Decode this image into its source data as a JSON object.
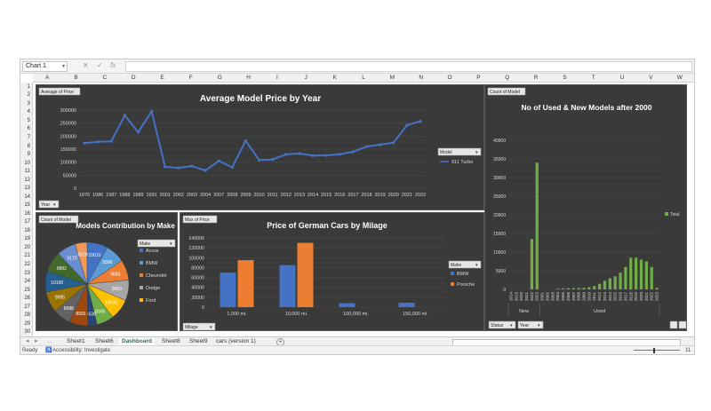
{
  "formula_bar": {
    "name_box": "Chart 1",
    "fx_icon": "fx",
    "cancel_icon": "✕",
    "enter_icon": "✓"
  },
  "columns": [
    "A",
    "B",
    "C",
    "D",
    "E",
    "F",
    "G",
    "H",
    "I",
    "J",
    "K",
    "L",
    "M",
    "N",
    "O",
    "P",
    "Q",
    "R",
    "S",
    "T",
    "U",
    "V",
    "W"
  ],
  "rows": [
    "1",
    "2",
    "3",
    "4",
    "5",
    "6",
    "7",
    "8",
    "9",
    "10",
    "11",
    "12",
    "13",
    "14",
    "15",
    "16",
    "17",
    "18",
    "19",
    "20",
    "21",
    "22",
    "23",
    "24",
    "25",
    "26",
    "27",
    "28",
    "29",
    "30"
  ],
  "tabs": {
    "nav_prev": "◂",
    "nav_next": "▸",
    "more": "...",
    "items": [
      "Sheet1",
      "Sheet6",
      "Dashboard",
      "Sheet8",
      "Sheet9",
      "cars (version 1)"
    ],
    "active": "Dashboard",
    "add": "+"
  },
  "status": {
    "ready": "Ready",
    "accessibility": "Accessibility: Investigate",
    "zoom_value": "11"
  },
  "chart_data": [
    {
      "type": "line",
      "title": "Average Model Price by Year",
      "field_button": "Average of Price",
      "axis_button": "Year",
      "legend_title": "Model",
      "x": [
        "1976",
        "1986",
        "1987",
        "1988",
        "1989",
        "1991",
        "2001",
        "2002",
        "2003",
        "2004",
        "2007",
        "2008",
        "2009",
        "2010",
        "2011",
        "2012",
        "2013",
        "2014",
        "2015",
        "2016",
        "2017",
        "2018",
        "2019",
        "2020",
        "2021",
        "2022"
      ],
      "series": [
        {
          "name": "911 Turbo",
          "values": [
            173000,
            178000,
            180000,
            280000,
            215000,
            295000,
            82000,
            78000,
            85000,
            68000,
            105000,
            80000,
            182000,
            108000,
            110000,
            130000,
            133000,
            125000,
            126000,
            130000,
            140000,
            160000,
            167000,
            175000,
            242000,
            257000
          ]
        }
      ],
      "yticks": [
        "300000",
        "250000",
        "200000",
        "150000",
        "100000",
        "50000",
        "0"
      ],
      "ylim": [
        0,
        300000
      ],
      "color": "#4472c4",
      "legend_placement": "right"
    },
    {
      "type": "pie",
      "title": "Models Contribution by Make",
      "field_button": "Count of Model",
      "legend_title": "Make",
      "legend": [
        "Acura",
        "BMW",
        "Chevrolet",
        "Dodge",
        "Ford"
      ],
      "values": [
        10010,
        9396,
        9883,
        9969,
        10046,
        8300,
        4538,
        8993,
        8688,
        9985,
        10100,
        9992,
        9170,
        5828
      ],
      "colors": [
        "#4472c4",
        "#5b9bd5",
        "#ed7d31",
        "#a5a5a5",
        "#ffc000",
        "#70ad47",
        "#264478",
        "#9e480e",
        "#636363",
        "#997300",
        "#255e91",
        "#43682b",
        "#698ed0",
        "#f1975a"
      ],
      "labels": [
        "10010",
        "9396",
        "9883",
        "9969",
        "10046",
        "8300",
        "4538",
        "8993",
        "8688",
        "9985",
        "10100",
        "9992",
        "9170",
        "5828"
      ]
    },
    {
      "type": "bar",
      "title": "Price of German Cars by Milage",
      "field_button": "Max of Price",
      "axis_button": "Milage",
      "legend_title": "Make",
      "categories": [
        "1,000 mi.",
        "10,000 mi.",
        "100,000 mi.",
        "150,000 mi."
      ],
      "series": [
        {
          "name": "BMW",
          "values": [
            70000,
            85000,
            8000,
            9000
          ],
          "color": "#4472c4"
        },
        {
          "name": "Porsche",
          "values": [
            95000,
            130000,
            0,
            0
          ],
          "color": "#ed7d31"
        }
      ],
      "yticks": [
        "140000",
        "120000",
        "100000",
        "80000",
        "60000",
        "40000",
        "20000",
        "0"
      ],
      "ylim": [
        0,
        140000
      ]
    },
    {
      "type": "bar",
      "title": "No of Used & New Models after 2000",
      "field_button": "Count of Model",
      "buttons": [
        "Status",
        "Year"
      ],
      "legend": [
        "Total"
      ],
      "color": "#70ad47",
      "groups": [
        "New",
        "Used"
      ],
      "categories": [
        "2014",
        "2019",
        "2020",
        "2021",
        "2022",
        "2023",
        "2001",
        "2002",
        "2003",
        "2004",
        "2005",
        "2006",
        "2007",
        "2008",
        "2009",
        "2010",
        "2011",
        "2012",
        "2013",
        "2014",
        "2015",
        "2016",
        "2017",
        "2018",
        "2019",
        "2020",
        "2021",
        "2022",
        "2023"
      ],
      "group_sizes": [
        6,
        23
      ],
      "values": [
        0,
        0,
        0,
        0,
        13500,
        34000,
        0,
        0,
        0,
        200,
        300,
        300,
        350,
        400,
        450,
        600,
        900,
        1500,
        2300,
        3000,
        3500,
        4500,
        6000,
        8500,
        8500,
        8000,
        7500,
        6000,
        400
      ],
      "yticks": [
        "40000",
        "35000",
        "30000",
        "25000",
        "20000",
        "15000",
        "10000",
        "5000",
        "0"
      ],
      "ylim": [
        0,
        40000
      ]
    }
  ]
}
